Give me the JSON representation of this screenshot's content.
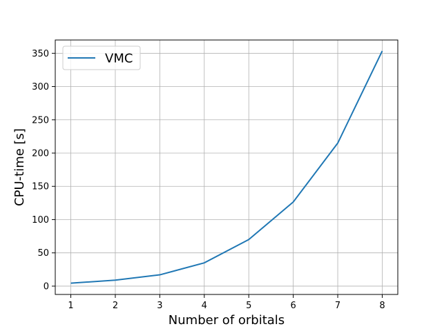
{
  "chart_data": {
    "type": "line",
    "title": "",
    "xlabel": "Number of orbitals",
    "ylabel": "CPU-time [s]",
    "x": [
      1,
      2,
      3,
      4,
      5,
      6,
      7,
      8
    ],
    "xticks": [
      1,
      2,
      3,
      4,
      5,
      6,
      7,
      8
    ],
    "yticks": [
      0,
      50,
      100,
      150,
      200,
      250,
      300,
      350
    ],
    "xlim": [
      0.65,
      8.35
    ],
    "ylim": [
      -12.5,
      370
    ],
    "grid": true,
    "legend": "upper-left",
    "series": [
      {
        "name": "VMC",
        "color": "#1f77b4",
        "values": [
          4.5,
          9,
          17,
          35,
          70,
          126.5,
          215,
          353.5
        ]
      }
    ]
  }
}
